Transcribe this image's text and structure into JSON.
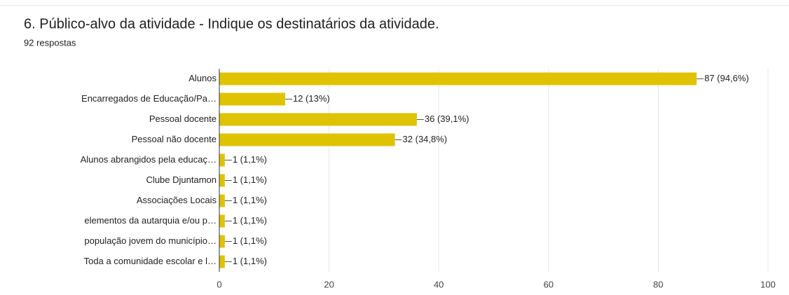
{
  "chart_data": {
    "type": "bar",
    "orientation": "horizontal",
    "title": "6. Público-alvo da atividade - Indique os destinatários da atividade.",
    "subtitle": "92 respostas",
    "categories": [
      "Alunos",
      "Encarregados de Educação/Pa…",
      "Pessoal docente",
      "Pessoal não docente",
      "Alunos abrangidos pela educaç…",
      "Clube Djuntamon",
      "Associações Locais",
      "elementos da autarquia e/ou p…",
      "população jovem do município…",
      "Toda a comunidade escolar e l…"
    ],
    "values": [
      87,
      12,
      36,
      32,
      1,
      1,
      1,
      1,
      1,
      1
    ],
    "value_labels": [
      "87 (94,6%)",
      "12 (13%)",
      "36 (39,1%)",
      "32 (34,8%)",
      "1 (1,1%)",
      "1 (1,1%)",
      "1 (1,1%)",
      "1 (1,1%)",
      "1 (1,1%)",
      "1 (1,1%)"
    ],
    "color": "#dfc300",
    "xlim": [
      0,
      100
    ],
    "xticks": [
      0,
      20,
      40,
      60,
      80,
      100
    ],
    "grid": true
  }
}
